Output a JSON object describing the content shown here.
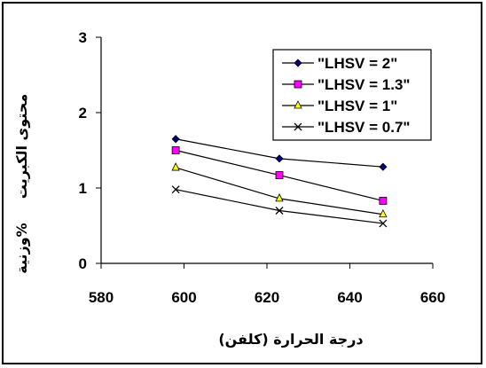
{
  "chart_data": {
    "type": "line",
    "title": "",
    "xlabel": "درجة الحرارة (كلفن)",
    "ylabel_line1": "محتوى الكبريت",
    "ylabel_line2": "%وزنية",
    "xlim": [
      580,
      660
    ],
    "ylim": [
      0,
      3
    ],
    "xticks": [
      580,
      600,
      620,
      640,
      660
    ],
    "yticks": [
      0,
      1,
      2,
      3
    ],
    "grid": false,
    "legend_position": "top-right",
    "x": [
      598,
      623,
      648
    ],
    "series": [
      {
        "name": "\"LHSV = 2\"",
        "values": [
          1.65,
          1.39,
          1.28
        ],
        "color": "#000080",
        "marker": "diamond"
      },
      {
        "name": "\"LHSV = 1.3\"",
        "values": [
          1.5,
          1.17,
          0.83
        ],
        "color": "#ff00ff",
        "marker": "square"
      },
      {
        "name": "\"LHSV = 1\"",
        "values": [
          1.27,
          0.86,
          0.65
        ],
        "color": "#ffff00",
        "marker": "triangle"
      },
      {
        "name": "\"LHSV = 0.7\"",
        "values": [
          0.98,
          0.7,
          0.53
        ],
        "color": "#000000",
        "marker": "x"
      }
    ]
  }
}
